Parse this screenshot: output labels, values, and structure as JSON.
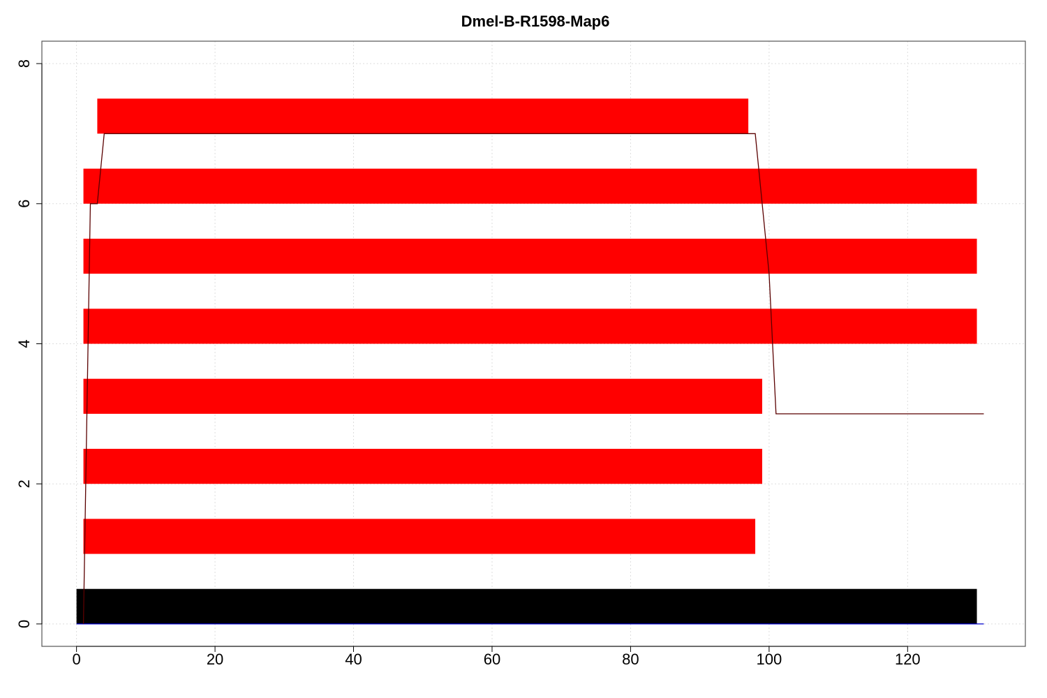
{
  "chart_data": {
    "type": "bar",
    "orientation": "horizontal",
    "title": "Dmel-B-R1598-Map6",
    "xlabel": "",
    "ylabel": "",
    "xlim": [
      -5,
      137
    ],
    "ylim": [
      -0.32,
      8.32
    ],
    "x_ticks": [
      0,
      20,
      40,
      60,
      80,
      100,
      120
    ],
    "y_ticks": [
      0,
      2,
      4,
      6,
      8
    ],
    "grid": true,
    "bars": [
      {
        "y0": 0,
        "y1": 0.5,
        "x0": 0,
        "x1": 130,
        "color": "#000000"
      },
      {
        "y0": 1,
        "y1": 1.5,
        "x0": 1,
        "x1": 98,
        "color": "#ff0000"
      },
      {
        "y0": 2,
        "y1": 2.5,
        "x0": 1,
        "x1": 99,
        "color": "#ff0000"
      },
      {
        "y0": 3,
        "y1": 3.5,
        "x0": 1,
        "x1": 99,
        "color": "#ff0000"
      },
      {
        "y0": 4,
        "y1": 4.5,
        "x0": 1,
        "x1": 130,
        "color": "#ff0000"
      },
      {
        "y0": 5,
        "y1": 5.5,
        "x0": 1,
        "x1": 130,
        "color": "#ff0000"
      },
      {
        "y0": 6,
        "y1": 6.5,
        "x0": 1,
        "x1": 130,
        "color": "#ff0000"
      },
      {
        "y0": 7,
        "y1": 7.5,
        "x0": 3,
        "x1": 97,
        "color": "#ff0000"
      }
    ],
    "line": {
      "color": "#5a0000",
      "points": [
        [
          1,
          0
        ],
        [
          2,
          6
        ],
        [
          3,
          6
        ],
        [
          4,
          7
        ],
        [
          98,
          7
        ],
        [
          100,
          5
        ],
        [
          101,
          3
        ],
        [
          131,
          3
        ]
      ]
    },
    "baseline": {
      "x0": 0,
      "x1": 131,
      "y": 0,
      "color": "#0000cc"
    }
  }
}
